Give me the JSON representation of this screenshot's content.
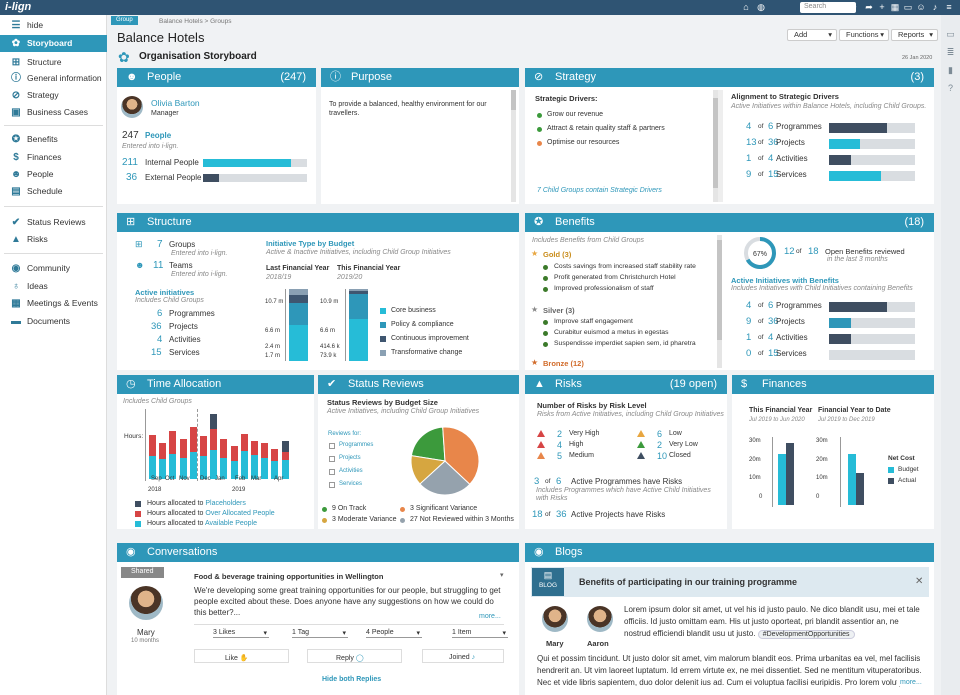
{
  "app": {
    "logo": "i-lign",
    "search_placeholder": "Search"
  },
  "sidebar": {
    "hide": "hide",
    "items": [
      {
        "label": "Storyboard",
        "icon": "palette-icon"
      },
      {
        "label": "Structure",
        "icon": "sitemap-icon"
      },
      {
        "label": "General information",
        "icon": "info-icon"
      },
      {
        "label": "Strategy",
        "icon": "compass-icon"
      },
      {
        "label": "Business Cases",
        "icon": "briefcase-icon"
      },
      {
        "label": "Benefits",
        "icon": "award-icon"
      },
      {
        "label": "Finances",
        "icon": "dollar-icon"
      },
      {
        "label": "People",
        "icon": "people-icon"
      },
      {
        "label": "Schedule",
        "icon": "calendar-icon"
      },
      {
        "label": "Status Reviews",
        "icon": "check-icon"
      },
      {
        "label": "Risks",
        "icon": "warning-icon"
      },
      {
        "label": "Community",
        "icon": "chat-icon"
      },
      {
        "label": "Ideas",
        "icon": "lightbulb-icon"
      },
      {
        "label": "Meetings & Events",
        "icon": "calendar-check-icon"
      },
      {
        "label": "Documents",
        "icon": "folder-icon"
      }
    ]
  },
  "header": {
    "group_badge": "Group",
    "breadcrumb": "Balance Hotels > Groups",
    "title": "Balance Hotels",
    "subtitle": "Organisation Storyboard",
    "date": "26 Jan 2020",
    "buttons": [
      "Add",
      "Functions",
      "Reports"
    ]
  },
  "people": {
    "title": "People",
    "count": "(247)",
    "name": "Olivia Barton",
    "role": "Manager",
    "total": "247",
    "total_label": "People",
    "entered": "Entered into i-lign.",
    "internal_n": "211",
    "internal_label": "Internal People",
    "internal_frac": 0.85,
    "external_n": "36",
    "external_label": "External People",
    "external_frac": 0.15
  },
  "purpose": {
    "title": "Purpose",
    "text": "To provide a balanced, healthy environment for our travellers."
  },
  "strategy": {
    "title": "Strategy",
    "count": "(3)",
    "drivers_title": "Strategic Drivers:",
    "drivers": [
      {
        "label": "Grow our revenue",
        "color": "#3c9a3c"
      },
      {
        "label": "Attract & retain quality staff & partners",
        "color": "#3c9a3c"
      },
      {
        "label": "Optimise our resources",
        "color": "#e8864a"
      }
    ],
    "note": "7 Child Groups contain Strategic Drivers",
    "align_title": "Alignment to Strategic Drivers",
    "align_sub": "Active Initiatives within Balance Hotels, including Child Groups.",
    "rows": [
      {
        "a": "4",
        "b": "6",
        "label": "Programmes",
        "frac": 0.67,
        "color": "#3f4e61"
      },
      {
        "a": "13",
        "b": "36",
        "label": "Projects",
        "frac": 0.36,
        "color": "#26bcd7"
      },
      {
        "a": "1",
        "b": "4",
        "label": "Activities",
        "frac": 0.25,
        "color": "#3f4e61"
      },
      {
        "a": "9",
        "b": "15",
        "label": "Services",
        "frac": 0.6,
        "color": "#26bcd7"
      }
    ],
    "of": "of"
  },
  "structure": {
    "title": "Structure",
    "groups_n": "7",
    "groups_label": "Groups",
    "groups_sub": "Entered into i-lign.",
    "teams_n": "11",
    "teams_label": "Teams",
    "teams_sub": "Entered into i-lign.",
    "ai_title": "Active initiatives",
    "ai_sub": "Includes Child Groups",
    "ai": [
      {
        "n": "6",
        "label": "Programmes"
      },
      {
        "n": "36",
        "label": "Projects"
      },
      {
        "n": "4",
        "label": "Activities"
      },
      {
        "n": "15",
        "label": "Services"
      }
    ],
    "chart_title": "Initiative Type by Budget",
    "chart_sub": "Active & Inactive Initiatives, including Child Group Initiatives",
    "lfy": "Last Financial Year",
    "lfy_sub": "2018/19",
    "tfy": "This Financial Year",
    "tfy_sub": "2019/20",
    "lfy_labels": [
      "10.7 m",
      "6.6 m",
      "2.4 m",
      "1.7 m"
    ],
    "tfy_labels": [
      "10.9 m",
      "6.6 m",
      "414.6 k",
      "73.9 k"
    ],
    "legend": [
      {
        "label": "Core business",
        "color": "#26bcd7"
      },
      {
        "label": "Policy & compliance",
        "color": "#2e97b9"
      },
      {
        "label": "Continuous improvement",
        "color": "#3f5670"
      },
      {
        "label": "Transformative change",
        "color": "#8aa0b3"
      }
    ]
  },
  "benefits": {
    "title": "Benefits",
    "count": "(18)",
    "sub": "Includes Benefits from Child Groups",
    "gold": "Gold (3)",
    "gold_items": [
      "Costs savings from increased staff stability rate",
      "Profit generated from Christchurch Hotel",
      "Improved professionalism of staff"
    ],
    "silver": "Silver (3)",
    "silver_items": [
      "Improve staff engagement",
      "Curabitur euismod a metus in egestas",
      "Suspendisse imperdiet sapien sem, id pharetra"
    ],
    "bronze": "Bronze (12)",
    "gauge": "67%",
    "gauge_frac": 0.67,
    "open_a": "12",
    "open_b": "18",
    "open_label": "Open Benefits reviewed",
    "open_sub": "in the last 3 months",
    "ai_title": "Active Initiatives with Benefits",
    "ai_sub": "Includes Initiatives with Child Initiatives containing Benefits",
    "rows": [
      {
        "a": "4",
        "b": "6",
        "label": "Programmes",
        "frac": 0.67,
        "color": "#3f4e61"
      },
      {
        "a": "9",
        "b": "36",
        "label": "Projects",
        "frac": 0.25,
        "color": "#2e97b9"
      },
      {
        "a": "1",
        "b": "4",
        "label": "Activities",
        "frac": 0.25,
        "color": "#3f4e61"
      },
      {
        "a": "0",
        "b": "15",
        "label": "Services",
        "frac": 0,
        "color": "#26bcd7"
      }
    ],
    "of": "of"
  },
  "time": {
    "title": "Time Allocation",
    "sub": "Includes Child Groups",
    "ylabel": "Hours:",
    "months": [
      "Sep",
      "Oct",
      "Nov",
      "Dec",
      "Jan",
      "Feb",
      "Mar",
      "Apr"
    ],
    "years": [
      "2018",
      "2019"
    ],
    "legend": [
      {
        "label": "Hours allocated to ",
        "hl": "Placeholders",
        "color": "#3f4e61"
      },
      {
        "label": "Hours allocated to ",
        "hl": "Over Allocated People",
        "color": "#d64545"
      },
      {
        "label": "Hours allocated to ",
        "hl": "Available People",
        "color": "#26bcd7"
      }
    ]
  },
  "status": {
    "title": "Status Reviews",
    "chart_title": "Status Reviews by Budget Size",
    "chart_sub": "Active Initiatives, including Child Group Initiatives",
    "reviews_for": "Reviews for:",
    "checks": [
      "Programmes",
      "Projects",
      "Activities",
      "Services"
    ],
    "legend": [
      {
        "label": "9 On Track",
        "color": "#3c9a3c"
      },
      {
        "label": "3 Significant Variance",
        "color": "#e8864a"
      },
      {
        "label": "3 Moderate Variance",
        "color": "#d6a640"
      },
      {
        "label": "27 Not Reviewed within 3 Months",
        "color": "#95a2ad"
      }
    ]
  },
  "risks": {
    "title": "Risks",
    "count": "(19 open)",
    "chart_title": "Number of Risks by Risk Level",
    "chart_sub": "Risks from Active Initiatives, including Child Group Initiatives",
    "levels": [
      {
        "n": "2",
        "label": "Very High",
        "color": "#d64545"
      },
      {
        "n": "4",
        "label": "High",
        "color": "#d64545"
      },
      {
        "n": "5",
        "label": "Medium",
        "color": "#e8864a"
      },
      {
        "n": "6",
        "label": "Low",
        "color": "#e8a640"
      },
      {
        "n": "2",
        "label": "Very Low",
        "color": "#3c9a3c"
      },
      {
        "n": "10",
        "label": "Closed",
        "color": "#3f4e61"
      }
    ],
    "prog_a": "3",
    "prog_b": "6",
    "prog_label": "Active Programmes have Risks",
    "prog_sub": "Includes Programmes which have Active Child Initiatives with Risks",
    "proj_a": "18",
    "proj_b": "36",
    "proj_label": "Active Projects have Risks",
    "of": "of"
  },
  "finances": {
    "title": "Finances",
    "tfy": "This Financial Year",
    "tfy_sub": "Jul 2019 to Jun 2020",
    "fytd": "Financial Year to Date",
    "fytd_sub": "Jul 2019 to Dec 2019",
    "yticks": [
      "30m",
      "20m",
      "10m",
      "0"
    ],
    "net_cost": "Net Cost",
    "budget": "Budget",
    "actual": "Actual"
  },
  "chart_data": [
    {
      "type": "bar",
      "title": "Initiative Type by Budget",
      "categories": [
        "Last Financial Year",
        "This Financial Year"
      ],
      "series": [
        {
          "name": "Core business",
          "values": [
            10.7,
            10.9
          ]
        },
        {
          "name": "Policy & compliance",
          "values": [
            6.6,
            6.6
          ]
        },
        {
          "name": "Continuous improvement",
          "values": [
            2.4,
            0.4146
          ]
        },
        {
          "name": "Transformative change",
          "values": [
            1.7,
            0.0739
          ]
        }
      ]
    },
    {
      "type": "bar",
      "title": "Time Allocation",
      "categories": [
        "Sep",
        "Oct",
        "Nov",
        "Dec",
        "Jan",
        "Feb",
        "Mar",
        "Apr"
      ],
      "series": [
        {
          "name": "Available People",
          "values": [
            22,
            24,
            26,
            28,
            20,
            27,
            20,
            18
          ]
        },
        {
          "name": "Over Allocated People",
          "values": [
            20,
            22,
            24,
            20,
            18,
            16,
            14,
            8
          ]
        },
        {
          "name": "Placeholders",
          "values": [
            0,
            0,
            0,
            14,
            0,
            0,
            0,
            10
          ]
        }
      ]
    },
    {
      "type": "pie",
      "title": "Status Reviews by Budget Size",
      "categories": [
        "On Track",
        "Significant Variance",
        "Moderate Variance",
        "Not Reviewed within 3 Months"
      ],
      "values": [
        9,
        3,
        3,
        27
      ]
    },
    {
      "type": "bar",
      "title": "Finances",
      "categories": [
        "This Financial Year",
        "Financial Year to Date"
      ],
      "series": [
        {
          "name": "Budget",
          "values": [
            24,
            24
          ]
        },
        {
          "name": "Actual",
          "values": [
            29,
            15
          ]
        }
      ],
      "ylim": [
        0,
        30
      ]
    }
  ],
  "conversations": {
    "title": "Conversations",
    "shared": "Shared",
    "post_title": "Food & beverage training opportunities in Wellington",
    "post_text": "We're developing some great training opportunities for our people, but struggling to get people excited about these. Does anyone have any suggestions on how we could do this better?...",
    "more": "more...",
    "author": "Mary",
    "author_sub": "10 months",
    "counts": [
      "3 Likes",
      "1 Tag",
      "4 People",
      "1 Item"
    ],
    "like": "Like",
    "reply": "Reply",
    "joined": "Joined",
    "hide_replies": "Hide both Replies"
  },
  "blogs": {
    "title": "Blogs",
    "badge": "BLOG",
    "post_title": "Benefits of participating in our training programme",
    "authors": [
      "Mary",
      "Aaron"
    ],
    "p1": "Lorem ipsum dolor sit amet, ut vel his id justo paulo. Ne dico blandit usu, mei et tale officiis. Id justo omittam eam. His ut justo oporteat, pri blandit assentior an, ne nostrud efficiendi blandit usu ut justo.",
    "tag": "#DevelopmentOpportunities",
    "p2": "Qui et possim tincidunt. Ut justo dolor sit amet, vim malorum blandit eos. Prima urbanitas ea vel, mel facilisis hendrerit an. Ut vim laoreet luptatum. Id errem virtute ex, ne mei dissentiet. Sed ne mentitum vituperatoribus. Nec et vide libris sapientem, duo dolor delenit ius ad. Cum ei voluptua facilisi euripidis. Pro lorem volutpat at. Usu et scripta gubergren...",
    "more": "more..."
  }
}
